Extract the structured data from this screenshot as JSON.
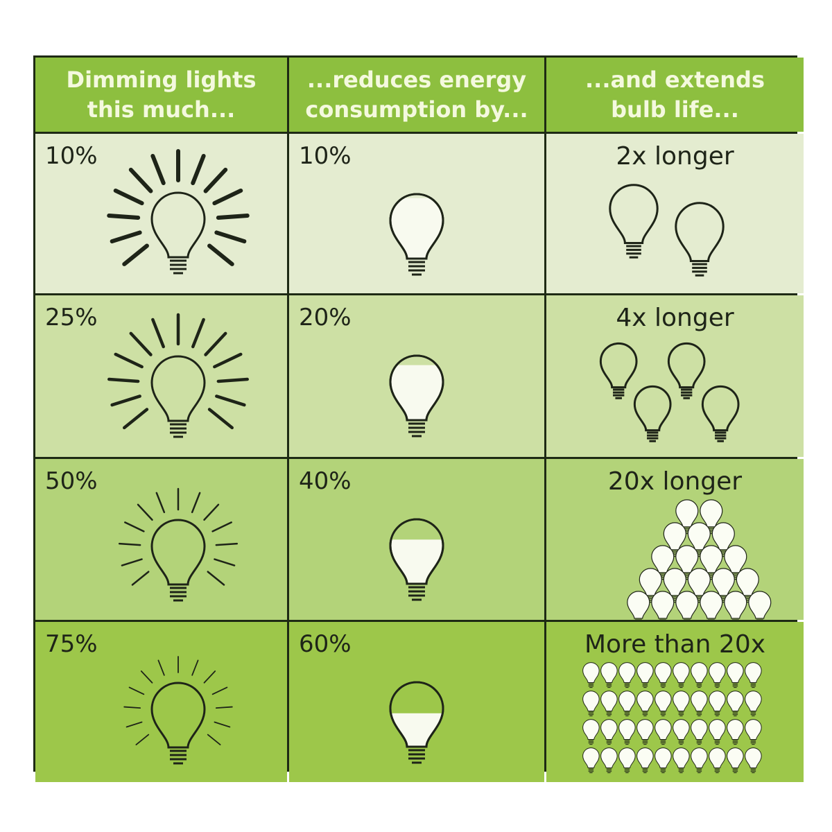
{
  "headers": [
    "Dimming lights\nthis much...",
    "...reduces energy\nconsumption by...",
    "...and extends\nbulb life..."
  ],
  "rows": [
    {
      "dim": "10%",
      "energy": "10%",
      "energy_fraction": 0.1,
      "life": "2x longer",
      "life_bulbs": 2,
      "ray_weight": "heavy",
      "bg": "#e4ecd0"
    },
    {
      "dim": "25%",
      "energy": "20%",
      "energy_fraction": 0.2,
      "life": "4x longer",
      "life_bulbs": 4,
      "ray_weight": "medium",
      "bg": "#cde0a4"
    },
    {
      "dim": "50%",
      "energy": "40%",
      "energy_fraction": 0.4,
      "life": "20x longer",
      "life_bulbs": 20,
      "ray_weight": "light",
      "bg": "#b3d379"
    },
    {
      "dim": "75%",
      "energy": "60%",
      "energy_fraction": 0.6,
      "life": "More than 20x",
      "life_bulbs": 40,
      "ray_weight": "thin",
      "bg": "#9dc74a"
    }
  ],
  "colors": {
    "header": "#8dbf3f",
    "ink": "#1e2418",
    "bulb_fill": "#f8faef"
  }
}
